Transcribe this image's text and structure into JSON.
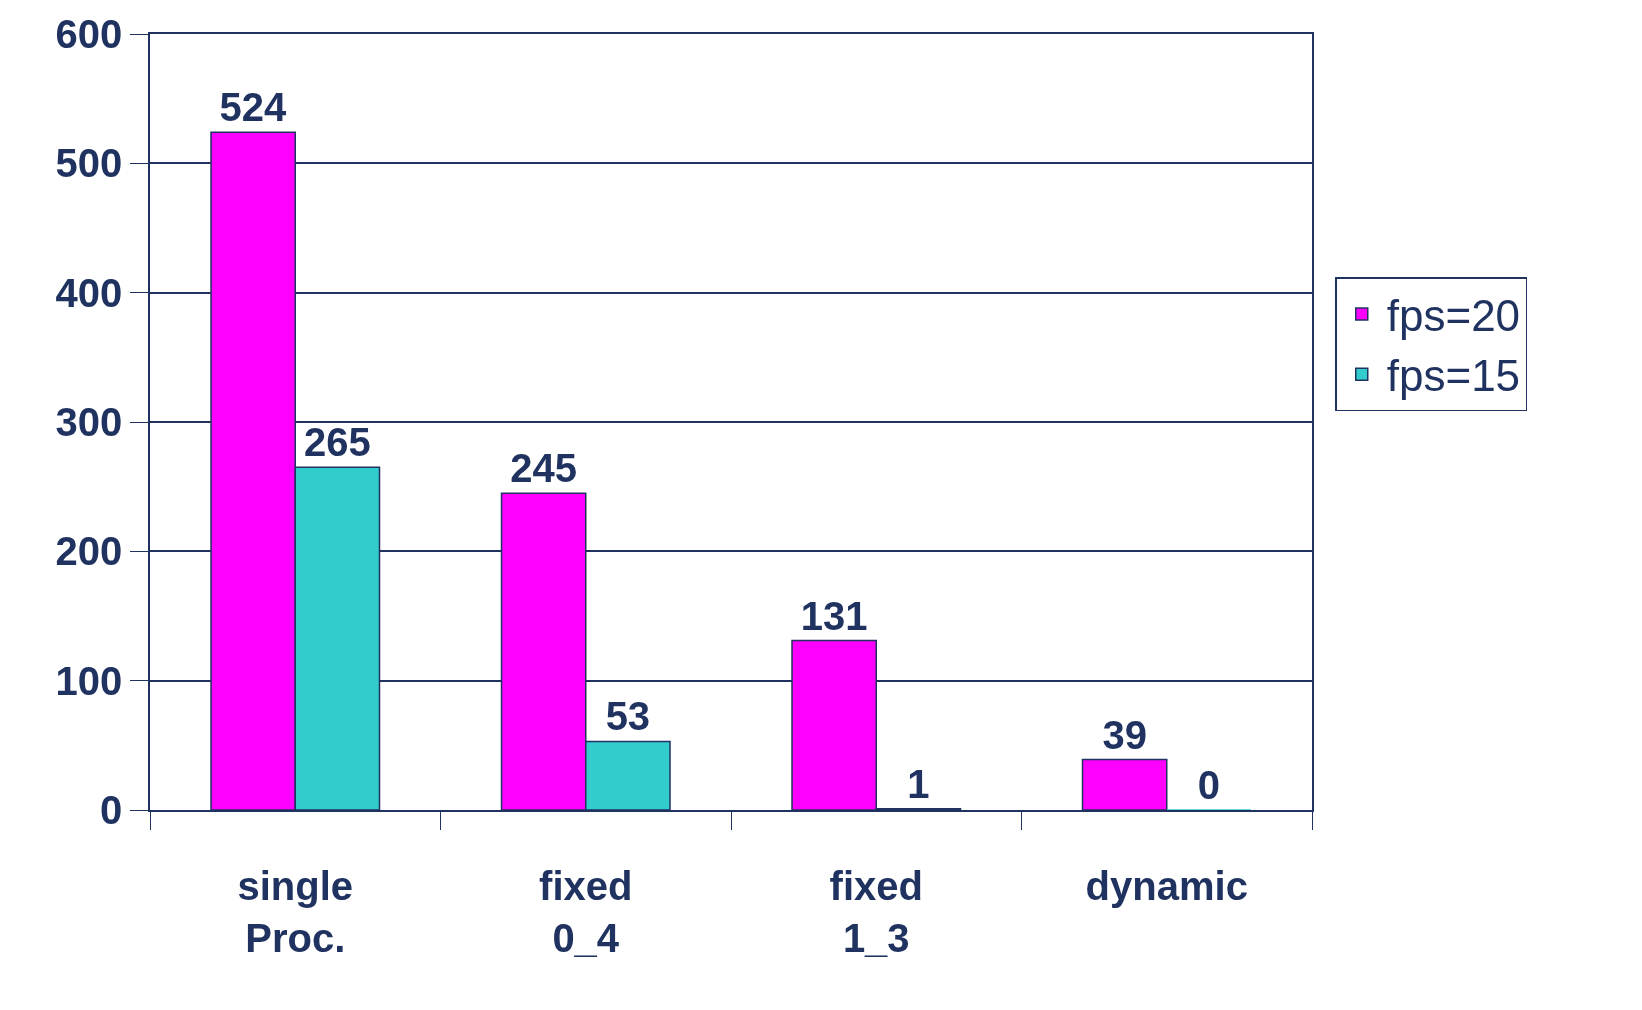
{
  "chart_data": {
    "type": "bar",
    "categories": [
      "single Proc.",
      "fixed 0_4",
      "fixed 1_3",
      "dynamic"
    ],
    "series": [
      {
        "name": "fps=20",
        "color": "#ff00ff",
        "values": [
          524,
          245,
          131,
          39
        ]
      },
      {
        "name": "fps=15",
        "color": "#33cccc",
        "values": [
          265,
          53,
          1,
          0
        ]
      }
    ],
    "ylim": [
      0,
      600
    ],
    "yticks": [
      0,
      100,
      200,
      300,
      400,
      500,
      600
    ],
    "grid": "y",
    "legend": "right",
    "data_labels": true
  }
}
